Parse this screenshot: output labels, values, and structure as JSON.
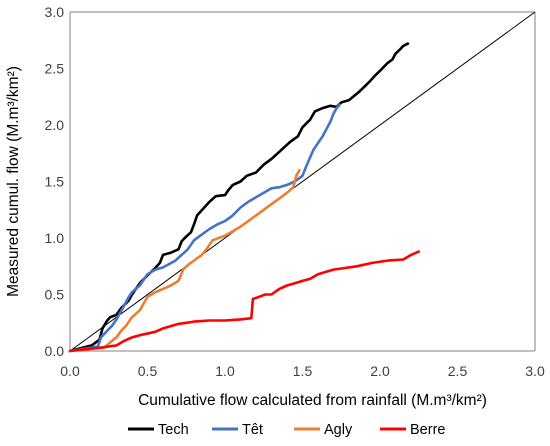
{
  "chart_data": {
    "type": "line",
    "title": "",
    "xlabel": "Cumulative flow calculated from rainfall (M.m³/km²)",
    "ylabel": "Measured cumul. flow (M.m³/km²)",
    "xlim": [
      0,
      3
    ],
    "ylim": [
      0,
      3
    ],
    "xticks": [
      "0.0",
      "0.5",
      "1.0",
      "1.5",
      "2.0",
      "2.5",
      "3.0"
    ],
    "yticks": [
      "0.0",
      "0.5",
      "1.0",
      "1.5",
      "2.0",
      "2.5",
      "3.0"
    ],
    "grid": false,
    "legend_position": "bottom",
    "reference_line": {
      "x": [
        0,
        3
      ],
      "y": [
        0,
        3
      ],
      "color": "#000000"
    },
    "series": [
      {
        "name": "Tech",
        "color": "#000000",
        "x": [
          0,
          0.14,
          0.19,
          0.21,
          0.24,
          0.26,
          0.3,
          0.33,
          0.36,
          0.38,
          0.4,
          0.45,
          0.5,
          0.54,
          0.58,
          0.6,
          0.65,
          0.7,
          0.72,
          0.74,
          0.78,
          0.8,
          0.82,
          0.86,
          0.9,
          0.94,
          1.0,
          1.02,
          1.05,
          1.1,
          1.14,
          1.2,
          1.25,
          1.3,
          1.34,
          1.38,
          1.42,
          1.47,
          1.5,
          1.55,
          1.58,
          1.63,
          1.68,
          1.72,
          1.75,
          1.8,
          1.87,
          1.93,
          1.97,
          2.0,
          2.05,
          2.08,
          2.1,
          2.13,
          2.15,
          2.18
        ],
        "y": [
          0,
          0.05,
          0.1,
          0.2,
          0.27,
          0.3,
          0.32,
          0.38,
          0.42,
          0.45,
          0.5,
          0.6,
          0.67,
          0.72,
          0.78,
          0.85,
          0.87,
          0.9,
          0.97,
          1.0,
          1.05,
          1.12,
          1.2,
          1.26,
          1.32,
          1.37,
          1.38,
          1.42,
          1.47,
          1.5,
          1.55,
          1.58,
          1.65,
          1.7,
          1.75,
          1.8,
          1.85,
          1.9,
          1.98,
          2.05,
          2.12,
          2.15,
          2.17,
          2.16,
          2.2,
          2.22,
          2.3,
          2.38,
          2.44,
          2.48,
          2.55,
          2.58,
          2.63,
          2.67,
          2.7,
          2.72
        ]
      },
      {
        "name": "Têt",
        "color": "#4472C4",
        "x": [
          0,
          0.18,
          0.2,
          0.24,
          0.27,
          0.3,
          0.34,
          0.38,
          0.4,
          0.45,
          0.5,
          0.55,
          0.6,
          0.68,
          0.72,
          0.76,
          0.8,
          0.85,
          0.9,
          0.95,
          1.0,
          1.05,
          1.1,
          1.15,
          1.2,
          1.25,
          1.3,
          1.35,
          1.4,
          1.45,
          1.5,
          1.52,
          1.57,
          1.63,
          1.68,
          1.7,
          1.72,
          1.74
        ],
        "y": [
          0,
          0.04,
          0.12,
          0.18,
          0.22,
          0.28,
          0.38,
          0.48,
          0.52,
          0.58,
          0.68,
          0.72,
          0.74,
          0.8,
          0.85,
          0.9,
          0.98,
          1.03,
          1.08,
          1.12,
          1.15,
          1.2,
          1.27,
          1.32,
          1.36,
          1.4,
          1.44,
          1.45,
          1.47,
          1.5,
          1.55,
          1.62,
          1.78,
          1.9,
          2.03,
          2.1,
          2.15,
          2.18
        ]
      },
      {
        "name": "Agly",
        "color": "#ED7D31",
        "x": [
          0,
          0.22,
          0.28,
          0.3,
          0.33,
          0.36,
          0.4,
          0.45,
          0.5,
          0.55,
          0.6,
          0.65,
          0.7,
          0.73,
          0.76,
          0.8,
          0.85,
          0.88,
          0.92,
          1.0,
          1.05,
          1.1,
          1.15,
          1.2,
          1.25,
          1.3,
          1.35,
          1.4,
          1.44,
          1.46,
          1.48
        ],
        "y": [
          0,
          0.03,
          0.1,
          0.12,
          0.18,
          0.22,
          0.3,
          0.36,
          0.48,
          0.52,
          0.55,
          0.58,
          0.62,
          0.72,
          0.76,
          0.8,
          0.85,
          0.9,
          0.98,
          1.02,
          1.06,
          1.1,
          1.15,
          1.2,
          1.25,
          1.3,
          1.35,
          1.4,
          1.45,
          1.55,
          1.6
        ]
      },
      {
        "name": "Berre",
        "color": "#FF0000",
        "x": [
          0,
          0.2,
          0.3,
          0.35,
          0.4,
          0.45,
          0.55,
          0.6,
          0.65,
          0.7,
          0.75,
          0.8,
          0.9,
          1.0,
          1.1,
          1.17,
          1.18,
          1.22,
          1.26,
          1.3,
          1.35,
          1.4,
          1.45,
          1.5,
          1.55,
          1.6,
          1.65,
          1.7,
          1.75,
          1.85,
          1.95,
          2.05,
          2.15,
          2.2,
          2.25
        ],
        "y": [
          0,
          0.03,
          0.05,
          0.09,
          0.12,
          0.14,
          0.17,
          0.2,
          0.22,
          0.24,
          0.25,
          0.26,
          0.27,
          0.27,
          0.28,
          0.29,
          0.46,
          0.48,
          0.5,
          0.5,
          0.55,
          0.58,
          0.6,
          0.62,
          0.64,
          0.68,
          0.7,
          0.72,
          0.73,
          0.75,
          0.78,
          0.8,
          0.81,
          0.85,
          0.88
        ]
      }
    ]
  }
}
